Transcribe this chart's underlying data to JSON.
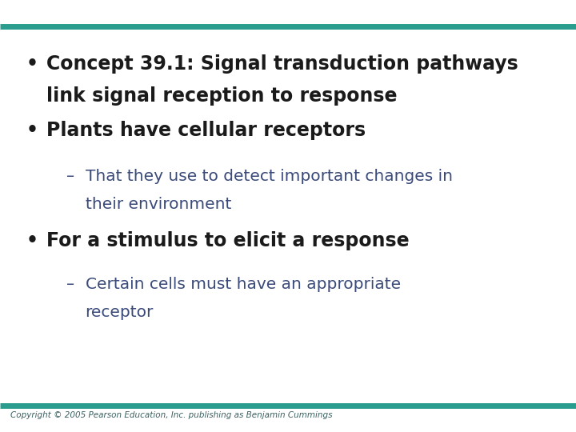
{
  "background_color": "#ffffff",
  "bar_color": "#2a9d8f",
  "bullet1_line1": "Concept 39.1: Signal transduction pathways",
  "bullet1_line2": "link signal reception to response",
  "bullet2_text": "Plants have cellular receptors",
  "sub1_line1": "That they use to detect important changes in",
  "sub1_line2": "their environment",
  "bullet3_text": "For a stimulus to elicit a response",
  "sub2_line1": "Certain cells must have an appropriate",
  "sub2_line2": "receptor",
  "copyright_text": "Copyright © 2005 Pearson Education, Inc. publishing as Benjamin Cummings",
  "bullet_color": "#1a1a1a",
  "text_color": "#1a1a1a",
  "sub_color": "#3a4a7a",
  "copyright_color": "#3a6060",
  "b_fontsize": 17,
  "sub_fontsize": 14.5,
  "copy_fontsize": 7.5,
  "bullet_sym": "•",
  "dash_sym": "–"
}
